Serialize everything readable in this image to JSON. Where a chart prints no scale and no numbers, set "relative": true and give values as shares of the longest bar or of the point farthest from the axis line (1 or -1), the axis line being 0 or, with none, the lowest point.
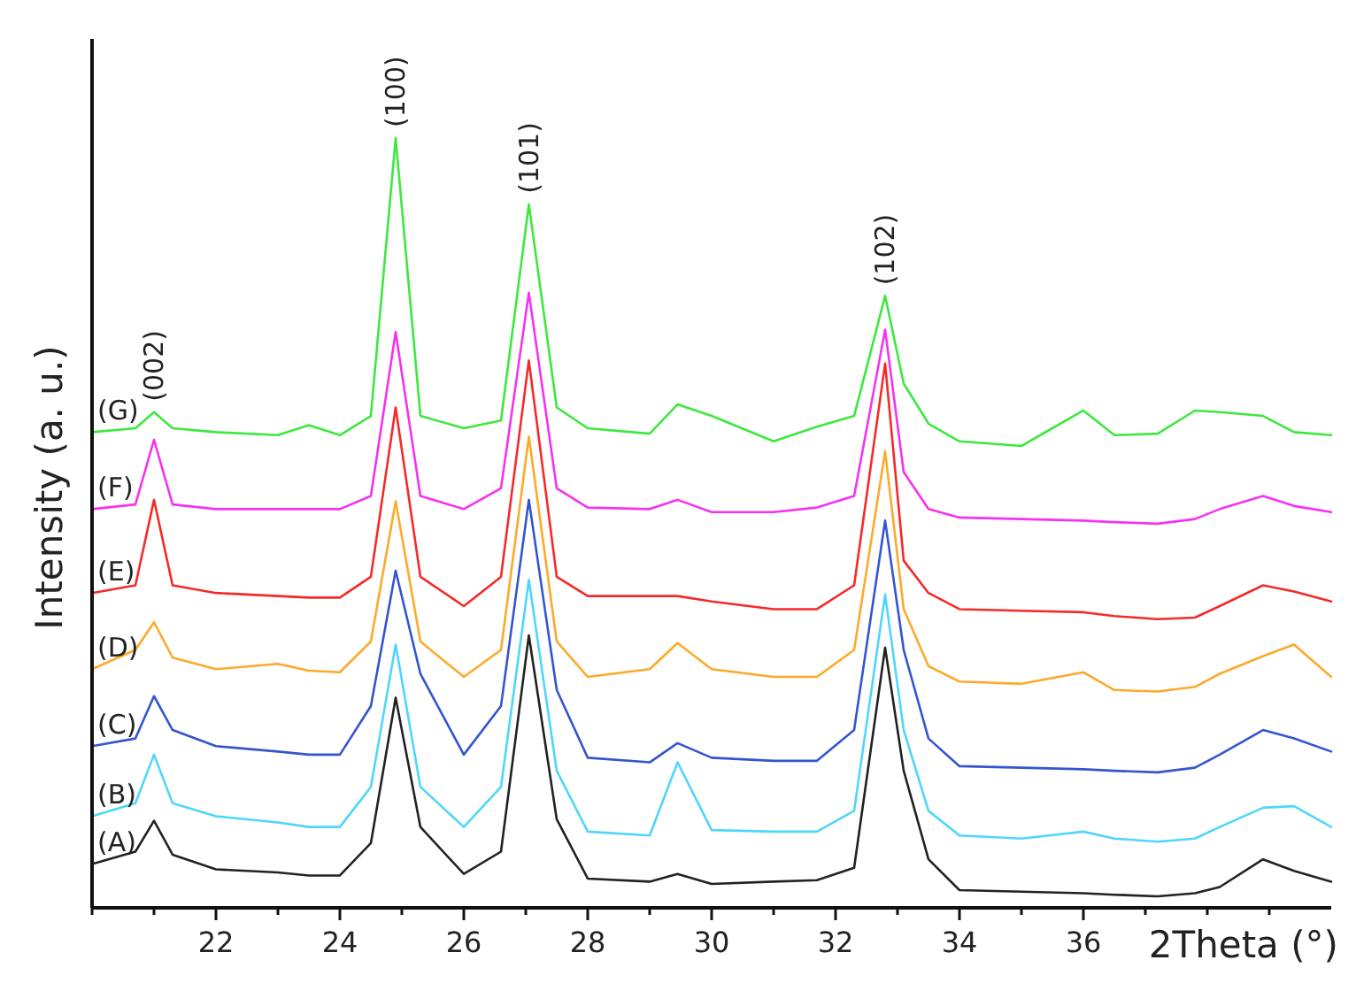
{
  "chart_data": {
    "type": "line",
    "relative": true,
    "xlabel": "2Theta (°)",
    "ylabel": "Intensity (a. u.)",
    "legend": false,
    "grid": false,
    "xlim": [
      20,
      40
    ],
    "xticks": [
      {
        "value": 20,
        "label": null
      },
      {
        "value": 21,
        "label": null
      },
      22,
      {
        "value": 23,
        "label": null
      },
      24,
      {
        "value": 25,
        "label": null
      },
      26,
      {
        "value": 27,
        "label": null
      },
      28,
      {
        "value": 29,
        "label": null
      },
      30,
      {
        "value": 31,
        "label": null
      },
      32,
      {
        "value": 33,
        "label": null
      },
      34,
      {
        "value": 35,
        "label": null
      },
      36,
      {
        "value": 37,
        "label": null
      },
      {
        "value": 38,
        "label": null
      },
      {
        "value": 39,
        "label": null
      }
    ],
    "x": [
      20,
      20.7,
      21,
      21.3,
      22,
      23,
      23.5,
      24,
      24.5,
      24.9,
      25.3,
      26,
      26.6,
      27.05,
      27.5,
      28,
      29,
      29.45,
      30,
      31,
      31.7,
      32.3,
      32.8,
      33.1,
      33.5,
      34,
      35,
      36,
      36.5,
      37.2,
      37.8,
      38.2,
      38.9,
      39.4,
      40
    ],
    "annotations": [
      {
        "text": "(002)",
        "x": 21,
        "y": 0.644
      },
      {
        "text": "(100)",
        "x": 24.9,
        "y": 1
      },
      {
        "text": "(101)",
        "x": 27.05,
        "y": 0.914
      },
      {
        "text": "(102)",
        "x": 32.8,
        "y": 0.795
      }
    ],
    "series": [
      {
        "name": "(A)",
        "color": "#222222",
        "values": [
          0.057,
          0.073,
          0.113,
          0.069,
          0.05,
          0.046,
          0.042,
          0.042,
          0.084,
          0.273,
          0.105,
          0.044,
          0.073,
          0.354,
          0.115,
          0.038,
          0.034,
          0.044,
          0.031,
          0.034,
          0.036,
          0.052,
          0.338,
          0.178,
          0.063,
          0.023,
          0.021,
          0.019,
          0.017,
          0.015,
          0.019,
          0.027,
          0.063,
          0.048,
          0.034
        ]
      },
      {
        "name": "(B)",
        "color": "#4fd6fb",
        "values": [
          0.119,
          0.136,
          0.199,
          0.136,
          0.119,
          0.111,
          0.105,
          0.105,
          0.157,
          0.342,
          0.157,
          0.105,
          0.157,
          0.426,
          0.178,
          0.099,
          0.094,
          0.189,
          0.101,
          0.099,
          0.099,
          0.126,
          0.407,
          0.231,
          0.126,
          0.094,
          0.09,
          0.099,
          0.09,
          0.086,
          0.09,
          0.105,
          0.13,
          0.132,
          0.105
        ]
      },
      {
        "name": "(C)",
        "color": "#3455cf",
        "values": [
          0.21,
          0.22,
          0.275,
          0.231,
          0.21,
          0.203,
          0.199,
          0.199,
          0.262,
          0.438,
          0.304,
          0.199,
          0.262,
          0.53,
          0.283,
          0.195,
          0.189,
          0.214,
          0.195,
          0.191,
          0.191,
          0.231,
          0.503,
          0.335,
          0.22,
          0.184,
          0.182,
          0.18,
          0.178,
          0.176,
          0.182,
          0.199,
          0.231,
          0.22,
          0.203
        ]
      },
      {
        "name": "(D)",
        "color": "#fcaa2a",
        "values": [
          0.31,
          0.335,
          0.371,
          0.325,
          0.31,
          0.317,
          0.308,
          0.306,
          0.346,
          0.528,
          0.346,
          0.3,
          0.335,
          0.612,
          0.346,
          0.3,
          0.31,
          0.344,
          0.31,
          0.3,
          0.3,
          0.335,
          0.593,
          0.388,
          0.314,
          0.294,
          0.291,
          0.306,
          0.283,
          0.281,
          0.287,
          0.304,
          0.327,
          0.342,
          0.3
        ]
      },
      {
        "name": "(E)",
        "color": "#f52a2a",
        "values": [
          0.409,
          0.419,
          0.53,
          0.419,
          0.409,
          0.405,
          0.403,
          0.403,
          0.43,
          0.65,
          0.43,
          0.392,
          0.43,
          0.711,
          0.43,
          0.405,
          0.405,
          0.405,
          0.398,
          0.388,
          0.388,
          0.419,
          0.707,
          0.451,
          0.409,
          0.388,
          0.386,
          0.384,
          0.379,
          0.375,
          0.377,
          0.392,
          0.419,
          0.411,
          0.398
        ]
      },
      {
        "name": "(F)",
        "color": "#f532f0",
        "values": [
          0.518,
          0.524,
          0.608,
          0.524,
          0.518,
          0.518,
          0.518,
          0.518,
          0.535,
          0.748,
          0.535,
          0.518,
          0.545,
          0.799,
          0.545,
          0.52,
          0.518,
          0.53,
          0.514,
          0.514,
          0.52,
          0.535,
          0.751,
          0.566,
          0.518,
          0.507,
          0.505,
          0.503,
          0.501,
          0.499,
          0.505,
          0.518,
          0.535,
          0.522,
          0.514
        ]
      },
      {
        "name": "(G)",
        "color": "#3ee83e",
        "values": [
          0.618,
          0.623,
          0.644,
          0.623,
          0.618,
          0.614,
          0.627,
          0.614,
          0.639,
          1,
          0.639,
          0.623,
          0.633,
          0.914,
          0.65,
          0.623,
          0.616,
          0.654,
          0.639,
          0.606,
          0.625,
          0.639,
          0.795,
          0.681,
          0.629,
          0.606,
          0.6,
          0.646,
          0.614,
          0.616,
          0.646,
          0.644,
          0.639,
          0.618,
          0.614
        ]
      }
    ]
  }
}
